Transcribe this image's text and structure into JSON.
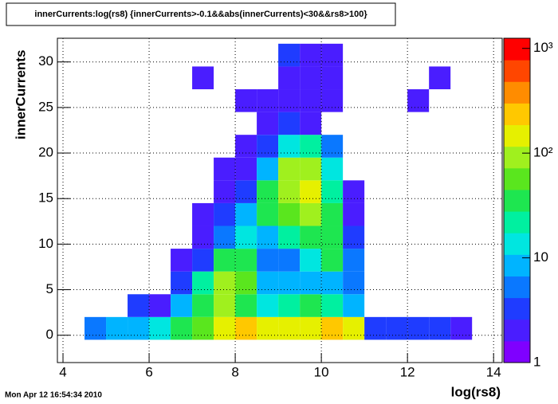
{
  "chart_data": {
    "type": "heatmap",
    "title": "innerCurrents:log(rs8) {innerCurrents>-0.1&&abs(innerCurrents)<30&&rs8>100}",
    "x_label": "log(rs8)",
    "y_label": "innerCurrents",
    "footer": "Mon Apr 12 16:54:34 2010",
    "xbins": [
      4,
      4.5,
      5,
      5.5,
      6,
      6.5,
      7,
      7.5,
      8,
      8.5,
      9,
      9.5,
      10,
      10.5,
      11,
      11.5,
      12,
      12.5,
      13,
      13.5,
      14
    ],
    "ybins": [
      -0.5,
      2,
      4.5,
      7,
      9.5,
      12,
      14.5,
      17,
      19.5,
      22,
      24.5,
      27,
      29.5,
      32
    ],
    "z": [
      [
        null,
        5,
        10,
        8,
        15,
        30,
        60,
        150,
        200,
        150,
        120,
        150,
        200,
        150,
        3,
        3,
        3,
        3,
        2,
        null
      ],
      [
        null,
        null,
        null,
        3,
        2,
        8,
        40,
        100,
        30,
        15,
        20,
        30,
        20,
        10,
        null,
        null,
        null,
        null,
        null,
        null
      ],
      [
        null,
        null,
        null,
        null,
        null,
        3,
        20,
        80,
        60,
        10,
        8,
        10,
        8,
        5,
        null,
        null,
        null,
        null,
        null,
        null
      ],
      [
        null,
        null,
        null,
        null,
        null,
        2,
        3,
        30,
        40,
        5,
        5,
        15,
        30,
        5,
        null,
        null,
        null,
        null,
        null,
        null
      ],
      [
        null,
        null,
        null,
        null,
        null,
        null,
        2,
        5,
        15,
        8,
        20,
        40,
        40,
        3,
        null,
        null,
        null,
        null,
        null,
        null
      ],
      [
        null,
        null,
        null,
        null,
        null,
        null,
        2,
        3,
        8,
        30,
        60,
        80,
        30,
        2,
        null,
        null,
        null,
        null,
        null,
        null
      ],
      [
        null,
        null,
        null,
        null,
        null,
        null,
        null,
        2,
        4,
        40,
        100,
        120,
        20,
        2,
        null,
        null,
        null,
        null,
        null,
        null
      ],
      [
        null,
        null,
        null,
        null,
        null,
        null,
        null,
        2,
        2,
        10,
        80,
        100,
        15,
        null,
        null,
        null,
        null,
        null,
        null,
        null
      ],
      [
        null,
        null,
        null,
        null,
        null,
        null,
        null,
        null,
        2,
        4,
        15,
        20,
        5,
        null,
        null,
        null,
        null,
        null,
        null,
        null
      ],
      [
        null,
        null,
        null,
        null,
        null,
        null,
        null,
        null,
        null,
        2,
        3,
        2,
        null,
        null,
        null,
        null,
        null,
        null,
        null,
        null
      ],
      [
        null,
        null,
        null,
        null,
        null,
        null,
        null,
        null,
        2,
        2,
        2,
        2,
        2,
        null,
        null,
        null,
        2,
        null,
        null,
        null
      ],
      [
        null,
        null,
        null,
        null,
        null,
        null,
        2,
        null,
        null,
        null,
        2,
        2,
        2,
        null,
        null,
        null,
        null,
        2,
        null,
        null
      ],
      [
        null,
        null,
        null,
        null,
        null,
        null,
        null,
        null,
        null,
        null,
        3,
        2,
        2,
        null,
        null,
        null,
        null,
        null,
        null,
        null
      ]
    ],
    "xlim": [
      3.87,
      14.2
    ],
    "ylim": [
      -3,
      32.6
    ],
    "zlim": [
      1,
      1250
    ],
    "zlog": true,
    "xticks": [
      4,
      6,
      8,
      10,
      12,
      14
    ],
    "yticks": [
      0,
      5,
      10,
      15,
      20,
      25,
      30
    ],
    "zticks": [
      1,
      10,
      {
        "value": 100,
        "label": "10²"
      },
      {
        "value": 1000,
        "label": "10³"
      }
    ],
    "grid": true,
    "palette": [
      "#7f00ff",
      "#4a1dff",
      "#1f3cff",
      "#0a78ff",
      "#00b4ff",
      "#00e6e0",
      "#00f0a0",
      "#1ee650",
      "#5ae61e",
      "#a0f01e",
      "#e6f000",
      "#ffc800",
      "#ff8c00",
      "#ff4600",
      "#ff0000"
    ]
  }
}
